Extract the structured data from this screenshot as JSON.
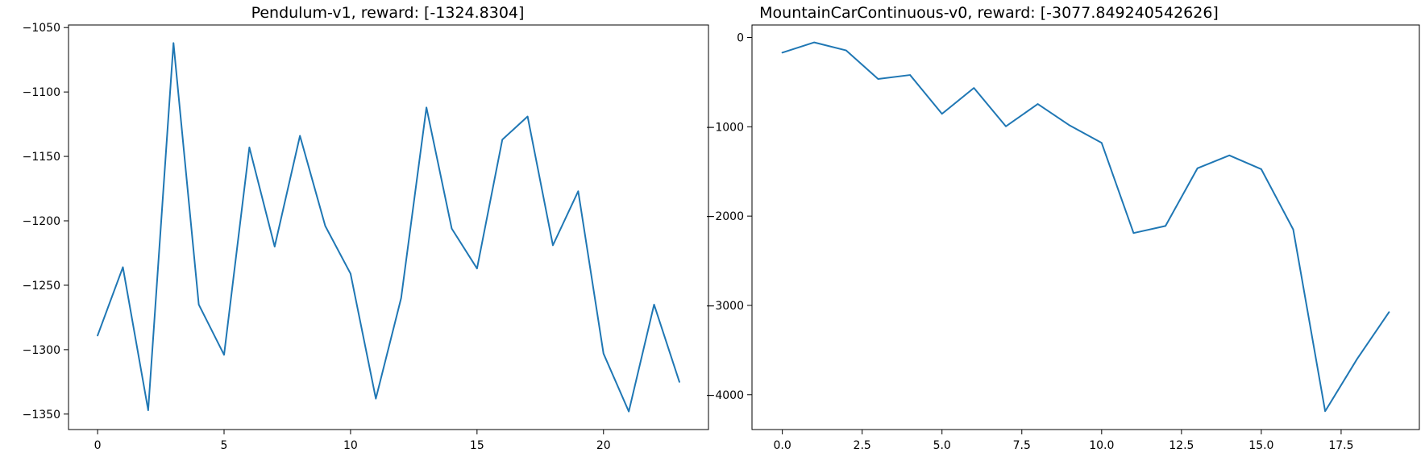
{
  "chart_data": [
    {
      "type": "line",
      "title": "Pendulum-v1, reward: [-1324.8304]",
      "xlabel": "",
      "ylabel": "",
      "xlim": [
        -1.15,
        24.15
      ],
      "ylim": [
        -1362,
        -1048
      ],
      "xticks": [
        0,
        5,
        10,
        15,
        20
      ],
      "xtick_labels": [
        "0",
        "5",
        "10",
        "15",
        "20"
      ],
      "yticks": [
        -1050,
        -1100,
        -1150,
        -1200,
        -1250,
        -1300,
        -1350
      ],
      "ytick_labels": [
        "−1050",
        "−1100",
        "−1150",
        "−1200",
        "−1250",
        "−1300",
        "−1350"
      ],
      "grid": false,
      "series": [
        {
          "color": "#1f77b4",
          "x": [
            0,
            1,
            2,
            3,
            4,
            5,
            6,
            7,
            8,
            9,
            10,
            11,
            12,
            13,
            14,
            15,
            16,
            17,
            18,
            19,
            20,
            21,
            22,
            23
          ],
          "y": [
            -1289,
            -1236,
            -1347,
            -1062,
            -1265,
            -1304,
            -1143,
            -1220,
            -1134,
            -1204,
            -1241,
            -1338,
            -1260,
            -1112,
            -1206,
            -1237,
            -1137,
            -1119,
            -1219,
            -1177,
            -1303,
            -1348,
            -1265,
            -1325
          ]
        }
      ]
    },
    {
      "type": "line",
      "title": "MountainCarContinuous-v0, reward: [-3077.849240542626]",
      "xlabel": "",
      "ylabel": "",
      "xlim": [
        -0.95,
        19.95
      ],
      "ylim": [
        -4390,
        140
      ],
      "xticks": [
        0,
        2.5,
        5,
        7.5,
        10,
        12.5,
        15,
        17.5
      ],
      "xtick_labels": [
        "0.0",
        "2.5",
        "5.0",
        "7.5",
        "10.0",
        "12.5",
        "15.0",
        "17.5"
      ],
      "yticks": [
        0,
        -1000,
        -2000,
        -3000,
        -4000
      ],
      "ytick_labels": [
        "0",
        "−1000",
        "−2000",
        "−3000",
        "−4000"
      ],
      "grid": false,
      "series": [
        {
          "color": "#1f77b4",
          "x": [
            0,
            1,
            2,
            3,
            4,
            5,
            6,
            7,
            8,
            9,
            10,
            11,
            12,
            13,
            14,
            15,
            16,
            17,
            18,
            19
          ],
          "y": [
            -170,
            -55,
            -145,
            -465,
            -420,
            -855,
            -565,
            -995,
            -745,
            -985,
            -1180,
            -2190,
            -2110,
            -1465,
            -1320,
            -1475,
            -2150,
            -4185,
            -3600,
            -3075
          ]
        }
      ]
    }
  ]
}
